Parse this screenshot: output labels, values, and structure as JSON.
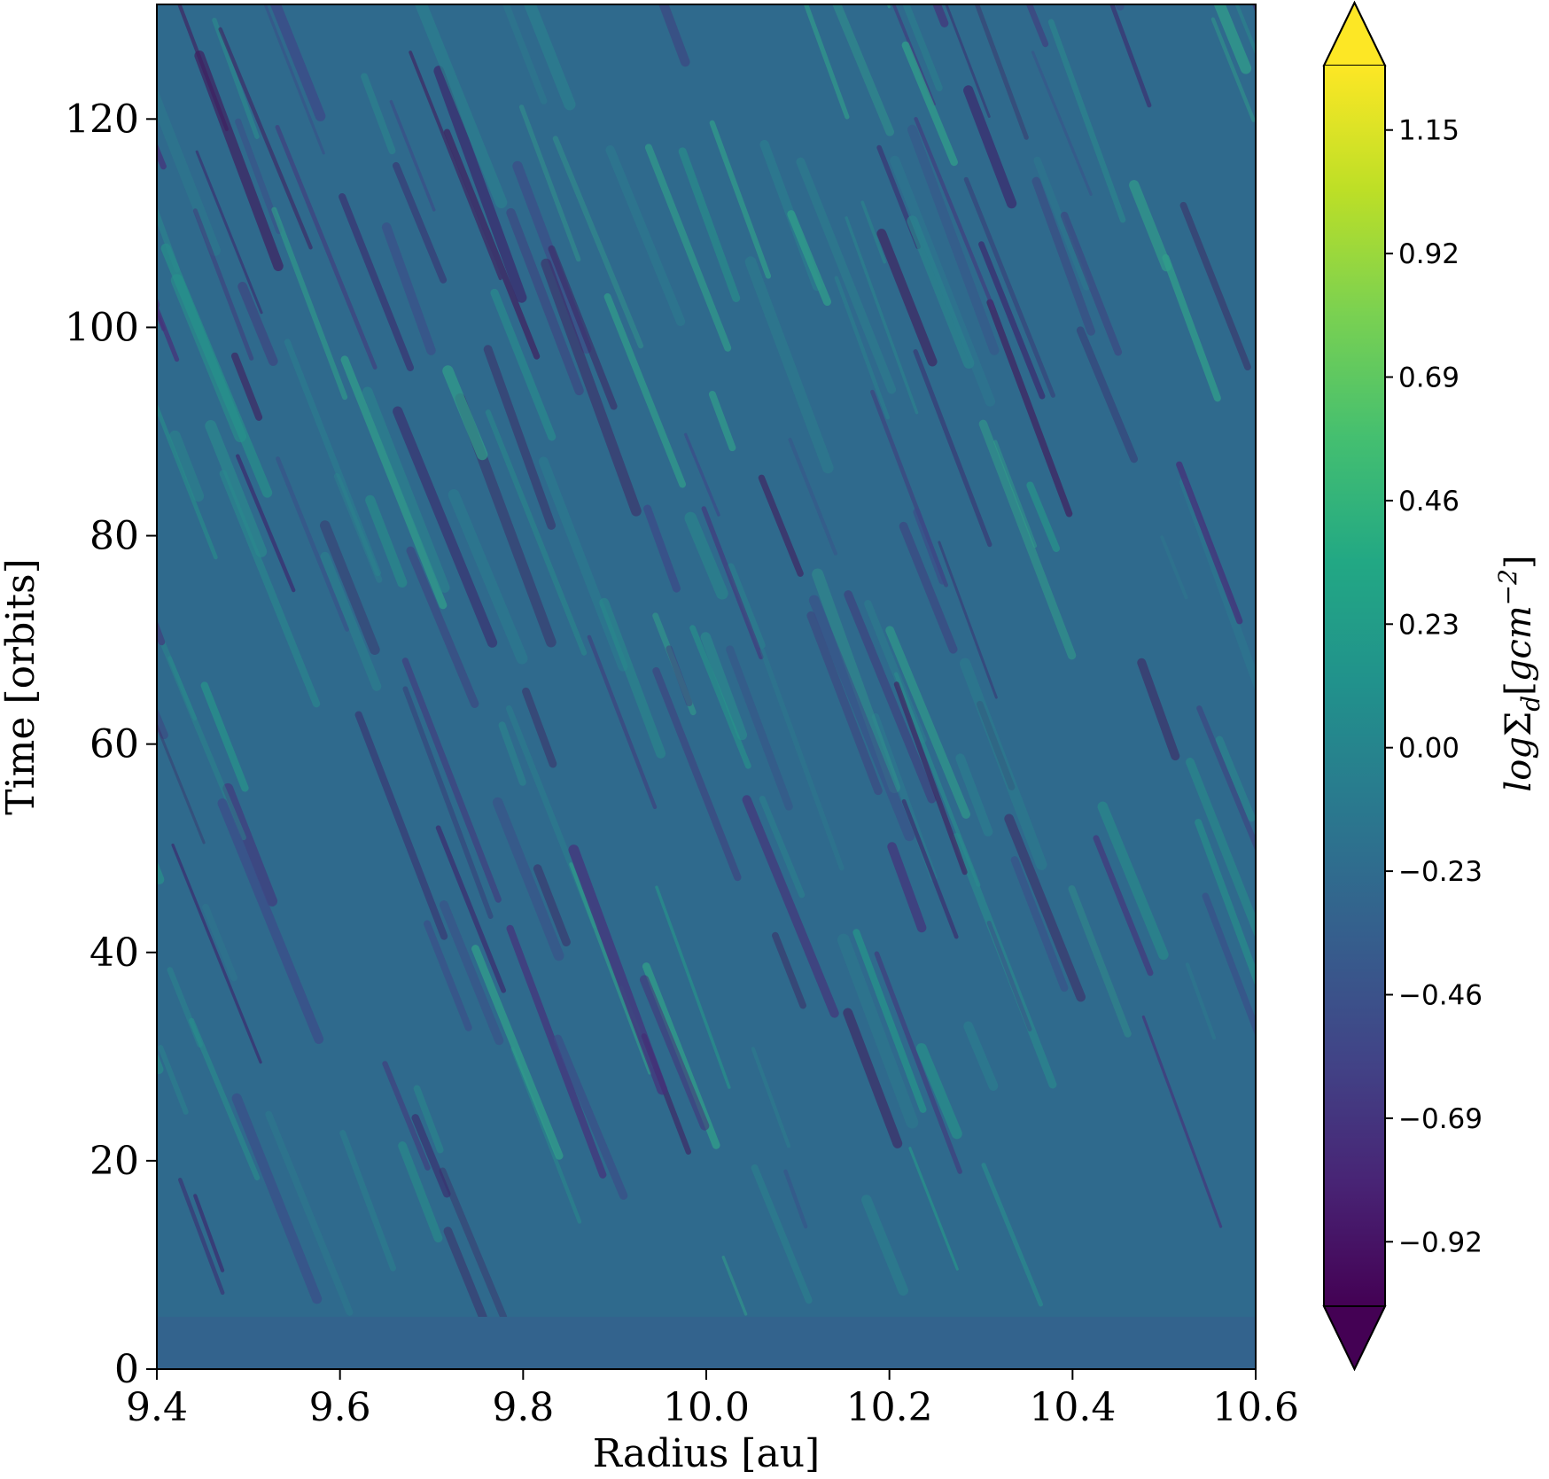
{
  "chart_data": {
    "type": "heatmap",
    "title": "",
    "xlabel": "Radius [au]",
    "ylabel": "Time [orbits]",
    "xlim": [
      9.4,
      10.6
    ],
    "ylim": [
      0,
      131
    ],
    "xticks": [
      9.4,
      9.6,
      9.8,
      10.0,
      10.2,
      10.4,
      10.6
    ],
    "xtick_labels": [
      "9.4",
      "9.6",
      "9.8",
      "10.0",
      "10.2",
      "10.4",
      "10.6"
    ],
    "yticks": [
      0,
      20,
      40,
      60,
      80,
      100,
      120
    ],
    "ytick_labels": [
      "0",
      "20",
      "40",
      "60",
      "80",
      "100",
      "120"
    ],
    "colormap": "viridis",
    "colorbar": {
      "label": "logΣ_d[gcm^-2]",
      "vmin": -1.04,
      "vmax": 1.27,
      "extend": "both",
      "ticks": [
        1.15,
        0.92,
        0.69,
        0.46,
        0.23,
        0.0,
        -0.23,
        -0.46,
        -0.69,
        -0.92
      ],
      "tick_labels": [
        "1.15",
        "0.92",
        "0.69",
        "0.46",
        "0.23",
        "0.00",
        "−0.23",
        "−0.46",
        "−0.69",
        "−0.92"
      ]
    },
    "description_values": {
      "initial_uniform_value": -0.23,
      "initial_uniform_until_time": 5,
      "typical_range": [
        -0.92,
        0.46
      ],
      "stripe_drift": "inward (stripes move to smaller radius with time)"
    },
    "grid": false
  },
  "colors": {
    "background": "#ffffff",
    "axes": "#000000",
    "uniform_band": "#33638d"
  }
}
